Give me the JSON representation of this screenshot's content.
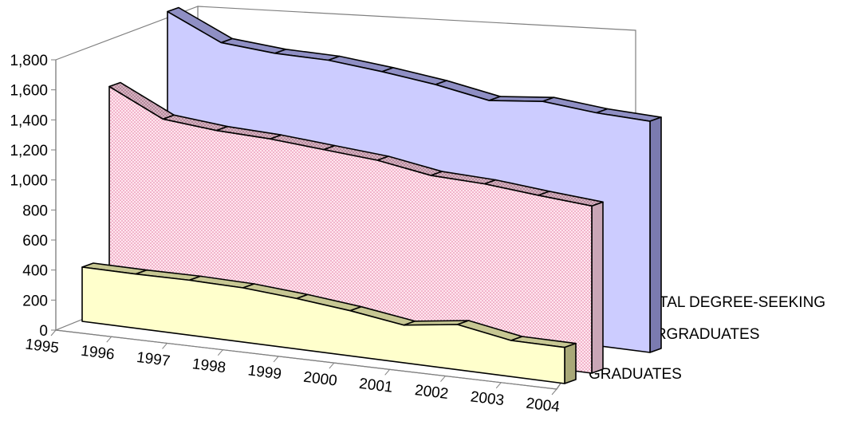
{
  "chart_data": {
    "type": "area",
    "three_d": true,
    "categories": [
      "1995",
      "1996",
      "1997",
      "1998",
      "1999",
      "2000",
      "2001",
      "2002",
      "2003",
      "2004"
    ],
    "y_ticks": [
      "0",
      "200",
      "400",
      "600",
      "800",
      "1,000",
      "1,200",
      "1,400",
      "1,600",
      "1,800"
    ],
    "ylim": [
      0,
      1800
    ],
    "grid": false,
    "series": [
      {
        "name": "GRADUATES",
        "values": [
          360,
          360,
          365,
          360,
          335,
          300,
          250,
          300,
          240,
          240
        ],
        "color": "#ffffcc"
      },
      {
        "name": "UNDERGRADUATES",
        "values": [
          1490,
          1320,
          1290,
          1280,
          1255,
          1230,
          1175,
          1165,
          1135,
          1110
        ],
        "color": "#ffe4ee"
      },
      {
        "name": "TOTAL DEGREE-SEEKING",
        "values": [
          1850,
          1690,
          1665,
          1665,
          1635,
          1595,
          1535,
          1575,
          1545,
          1535
        ],
        "color": "#ccccff"
      }
    ]
  }
}
